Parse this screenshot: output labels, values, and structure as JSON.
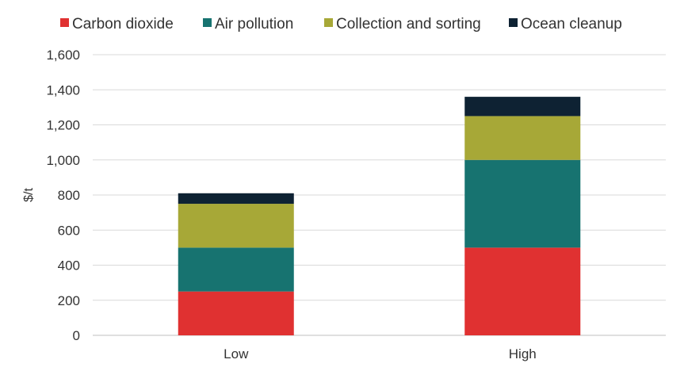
{
  "chart_data": {
    "type": "bar",
    "stacked": true,
    "title": "",
    "xlabel": "",
    "ylabel": "$/t",
    "categories": [
      "Low",
      "High"
    ],
    "ylim": [
      0,
      1600
    ],
    "yticks": [
      0,
      200,
      400,
      600,
      800,
      1000,
      1200,
      1400,
      1600
    ],
    "ytick_labels": [
      "0",
      "200",
      "400",
      "600",
      "800",
      "1,000",
      "1,200",
      "1,400",
      "1,600"
    ],
    "grid": true,
    "legend_position": "top",
    "series": [
      {
        "name": "Carbon dioxide",
        "color": "#e03131",
        "values": [
          250,
          500
        ]
      },
      {
        "name": "Air pollution",
        "color": "#177370",
        "values": [
          250,
          500
        ]
      },
      {
        "name": "Collection and sorting",
        "color": "#a7a837",
        "values": [
          250,
          250
        ]
      },
      {
        "name": "Ocean cleanup",
        "color": "#0e2233",
        "values": [
          60,
          110
        ]
      }
    ]
  }
}
